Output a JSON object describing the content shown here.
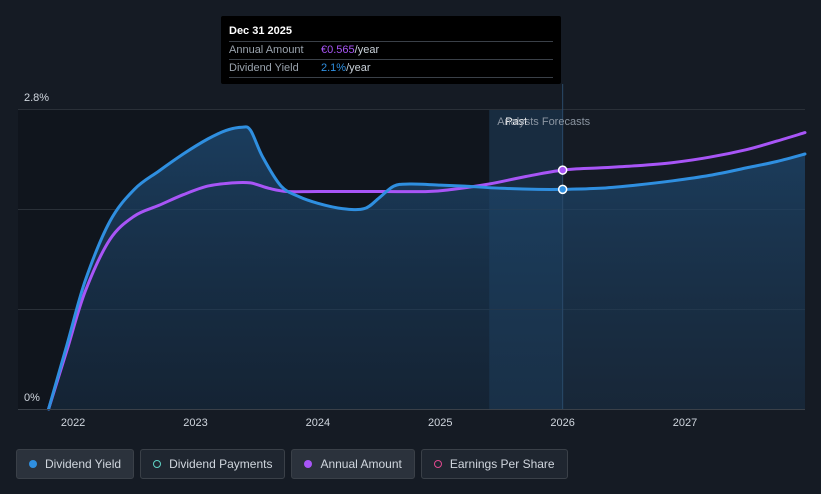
{
  "chart_data": {
    "type": "line",
    "x_ticks": [
      "2022",
      "2023",
      "2024",
      "2025",
      "2026",
      "2027"
    ],
    "y_ticks": [
      "0%",
      "2.8%"
    ],
    "ylim": [
      0,
      2.8
    ],
    "x_range": [
      2021.55,
      2027.98
    ],
    "forecast_start": 2025.4,
    "tooltip_date": 2026.0,
    "region_labels": {
      "past": "Past",
      "forecast": "Analysts Forecasts"
    },
    "series": [
      {
        "name": "Dividend Yield",
        "color": "#2f8fe0",
        "fill": true,
        "points": [
          [
            2021.8,
            0.0
          ],
          [
            2021.95,
            0.6
          ],
          [
            2022.1,
            1.2
          ],
          [
            2022.3,
            1.75
          ],
          [
            2022.5,
            2.05
          ],
          [
            2022.7,
            2.22
          ],
          [
            2022.9,
            2.38
          ],
          [
            2023.1,
            2.52
          ],
          [
            2023.25,
            2.6
          ],
          [
            2023.38,
            2.63
          ],
          [
            2023.45,
            2.6
          ],
          [
            2023.55,
            2.35
          ],
          [
            2023.7,
            2.08
          ],
          [
            2023.85,
            1.98
          ],
          [
            2024.0,
            1.92
          ],
          [
            2024.2,
            1.87
          ],
          [
            2024.38,
            1.87
          ],
          [
            2024.5,
            1.97
          ],
          [
            2024.62,
            2.08
          ],
          [
            2024.75,
            2.1
          ],
          [
            2025.0,
            2.09
          ],
          [
            2025.2,
            2.08
          ],
          [
            2025.5,
            2.06
          ],
          [
            2025.8,
            2.05
          ],
          [
            2026.0,
            2.05
          ],
          [
            2026.3,
            2.06
          ],
          [
            2026.6,
            2.09
          ],
          [
            2026.9,
            2.13
          ],
          [
            2027.2,
            2.18
          ],
          [
            2027.5,
            2.25
          ],
          [
            2027.75,
            2.31
          ],
          [
            2027.98,
            2.38
          ]
        ],
        "marker": [
          2026.0,
          2.05
        ]
      },
      {
        "name": "Annual Amount",
        "color": "#a855f7",
        "fill": false,
        "points": [
          [
            2021.8,
            0.0
          ],
          [
            2021.95,
            0.55
          ],
          [
            2022.1,
            1.1
          ],
          [
            2022.3,
            1.58
          ],
          [
            2022.5,
            1.8
          ],
          [
            2022.7,
            1.9
          ],
          [
            2022.9,
            2.0
          ],
          [
            2023.1,
            2.08
          ],
          [
            2023.3,
            2.11
          ],
          [
            2023.45,
            2.11
          ],
          [
            2023.6,
            2.06
          ],
          [
            2023.75,
            2.03
          ],
          [
            2024.0,
            2.03
          ],
          [
            2024.5,
            2.03
          ],
          [
            2024.9,
            2.03
          ],
          [
            2025.1,
            2.05
          ],
          [
            2025.4,
            2.1
          ],
          [
            2025.7,
            2.17
          ],
          [
            2026.0,
            2.23
          ],
          [
            2026.3,
            2.25
          ],
          [
            2026.6,
            2.27
          ],
          [
            2026.9,
            2.3
          ],
          [
            2027.2,
            2.35
          ],
          [
            2027.5,
            2.42
          ],
          [
            2027.75,
            2.5
          ],
          [
            2027.98,
            2.58
          ]
        ],
        "marker": [
          2026.0,
          2.23
        ]
      }
    ]
  },
  "tooltip": {
    "date": "Dec 31 2025",
    "rows": [
      {
        "label": "Annual Amount",
        "value": "€0.565",
        "unit": "/year"
      },
      {
        "label": "Dividend Yield",
        "value": "2.1%",
        "unit": "/year"
      }
    ]
  },
  "legend": [
    {
      "label": "Dividend Yield",
      "color": "#2f8fe0",
      "filled": true,
      "active": true
    },
    {
      "label": "Dividend Payments",
      "color": "#5fd3c6",
      "filled": false,
      "active": false
    },
    {
      "label": "Annual Amount",
      "color": "#a855f7",
      "filled": true,
      "active": true
    },
    {
      "label": "Earnings Per Share",
      "color": "#e0488f",
      "filled": false,
      "active": false
    }
  ]
}
